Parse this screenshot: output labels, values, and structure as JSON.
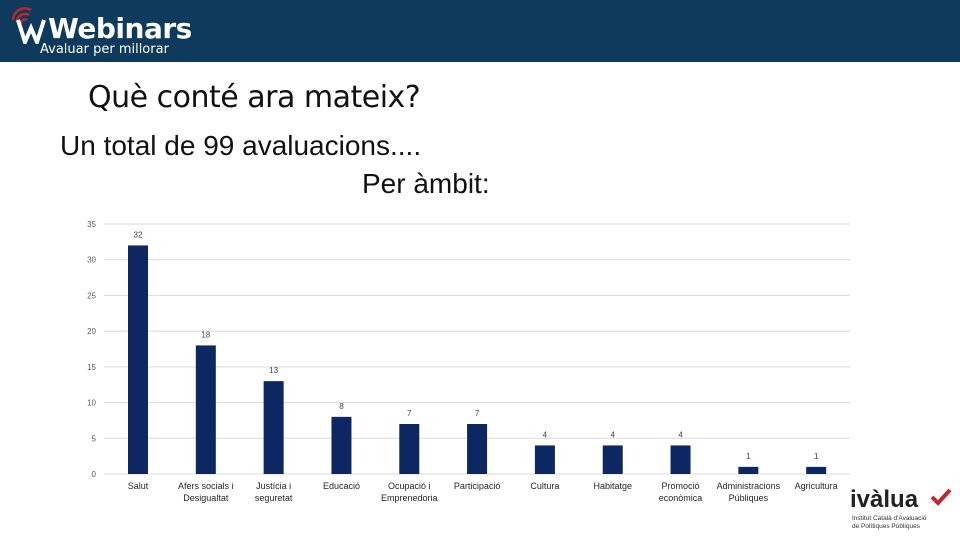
{
  "header": {
    "brand": "Webinars",
    "tagline": "Avaluar per millorar",
    "accent_color": "#c0272d",
    "background_color": "#0e3a5e"
  },
  "slide": {
    "title": "Què conté ara mateix?",
    "subtitle_line1": "Un total de 99 avaluacions....",
    "subtitle_line2": "Per àmbit:"
  },
  "footer_logo": {
    "brand": "ivàlua",
    "subtext_line1": "Institut Català d'Avaluació",
    "subtext_line2": "de Polítiques Públiques"
  },
  "chart_data": {
    "type": "bar",
    "categories": [
      [
        "Salut"
      ],
      [
        "Afers socials i",
        "Desigualtat"
      ],
      [
        "Justícia i",
        "seguretat"
      ],
      [
        "Educació"
      ],
      [
        "Ocupació i",
        "Emprenedoria"
      ],
      [
        "Participació"
      ],
      [
        "Cultura"
      ],
      [
        "Habitatge"
      ],
      [
        "Promoció",
        "econòmica"
      ],
      [
        "Administracions",
        "Públiques"
      ],
      [
        "Agricultura"
      ]
    ],
    "values": [
      32,
      18,
      13,
      8,
      7,
      7,
      4,
      4,
      4,
      1,
      1
    ],
    "ylim": [
      0,
      35
    ],
    "yticks": [
      0,
      5,
      10,
      15,
      20,
      25,
      30,
      35
    ],
    "grid": true,
    "data_labels": true,
    "bar_color": "#0d2763",
    "gridline_color": "#d9d9d9"
  }
}
